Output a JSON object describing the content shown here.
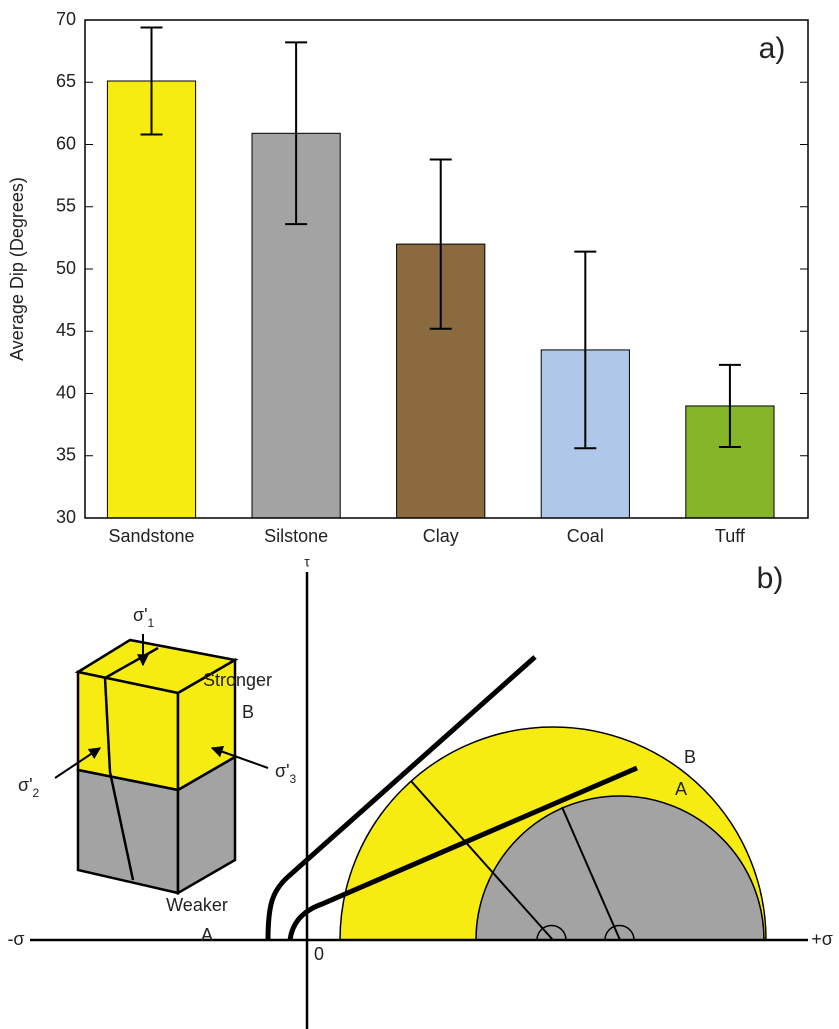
{
  "chart_data": {
    "type": "bar",
    "label": "a)",
    "ylabel": "Average Dip (Degrees)",
    "categories": [
      "Sandstone",
      "Silstone",
      "Clay",
      "Coal",
      "Tuff"
    ],
    "values": [
      65.1,
      60.9,
      52,
      43.5,
      39
    ],
    "errors": [
      4.3,
      7.3,
      6.8,
      7.9,
      3.3
    ],
    "colors": [
      "#f7ec12",
      "#a3a3a3",
      "#8c6a3f",
      "#afc7e9",
      "#86b52a"
    ],
    "ylim": [
      30,
      70
    ],
    "yticks": [
      30,
      35,
      40,
      45,
      50,
      55,
      60,
      65,
      70
    ]
  },
  "diagram": {
    "label": "b)",
    "axis_labels": {
      "tau": "τ",
      "neg": "-σ",
      "pos": "+σ",
      "origin": "0"
    },
    "stresses": [
      {
        "symbol": "σ'",
        "sub": "1"
      },
      {
        "symbol": "σ'",
        "sub": "2"
      },
      {
        "symbol": "σ'",
        "sub": "3"
      }
    ],
    "layers": [
      {
        "name": "Stronger",
        "id": "B"
      },
      {
        "name": "Weaker",
        "id": "A"
      }
    ],
    "circle_labels": [
      "B",
      "A"
    ]
  }
}
